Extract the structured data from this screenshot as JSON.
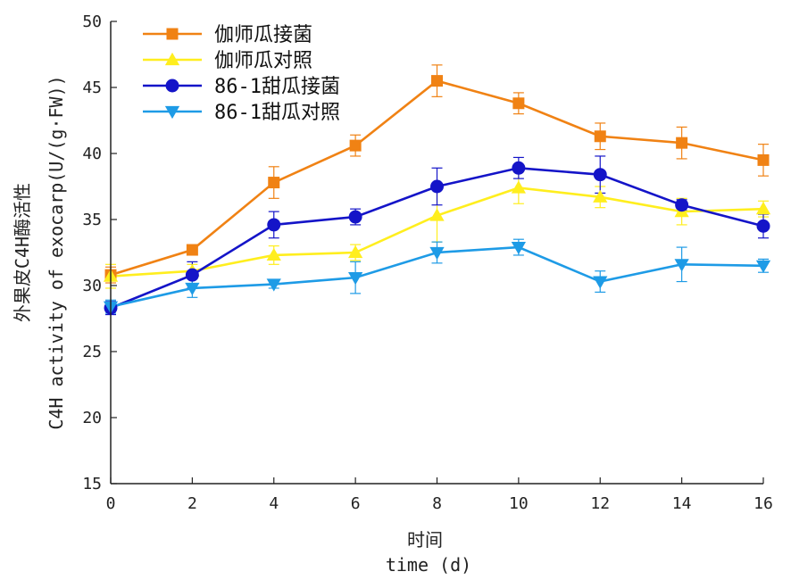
{
  "chart_data": {
    "type": "line",
    "x": [
      0,
      2,
      4,
      6,
      8,
      10,
      12,
      14,
      16
    ],
    "xlim": [
      0,
      16
    ],
    "ylim": [
      15,
      50
    ],
    "xticks": [
      0,
      2,
      4,
      6,
      8,
      10,
      12,
      14,
      16
    ],
    "yticks": [
      15,
      20,
      25,
      30,
      35,
      40,
      45,
      50
    ],
    "xlabel_cn": "时间",
    "xlabel": "time (d)",
    "ylabel_cn": "外果皮C4H酶活性",
    "ylabel": "C4H activity of exocarp(U/(g·FW))",
    "grid": false,
    "legend_position": "top-left",
    "series": [
      {
        "name": "伽师瓜接菌",
        "color": "#f08214",
        "marker": "square",
        "values": [
          30.8,
          32.7,
          37.8,
          40.6,
          45.5,
          43.8,
          41.3,
          40.8,
          39.5
        ],
        "errors": [
          0.6,
          0.3,
          1.2,
          0.8,
          1.2,
          0.8,
          1.0,
          1.2,
          1.2
        ]
      },
      {
        "name": "伽师瓜对照",
        "color": "#ffee1e",
        "marker": "triangle-up",
        "values": [
          30.7,
          31.1,
          32.3,
          32.5,
          35.3,
          37.4,
          36.7,
          35.6,
          35.8
        ],
        "errors": [
          0.9,
          0.5,
          0.7,
          0.6,
          2.0,
          1.2,
          0.8,
          1.0,
          0.6
        ]
      },
      {
        "name": "86-1甜瓜接菌",
        "color": "#1414c8",
        "marker": "circle",
        "values": [
          28.3,
          30.8,
          34.6,
          35.2,
          37.5,
          38.9,
          38.4,
          36.1,
          34.5
        ],
        "errors": [
          0.5,
          1.0,
          1.0,
          0.6,
          1.4,
          0.8,
          1.4,
          0.4,
          0.9
        ]
      },
      {
        "name": "86-1甜瓜对照",
        "color": "#1e9be6",
        "marker": "triangle-down",
        "values": [
          28.4,
          29.8,
          30.1,
          30.6,
          32.5,
          32.9,
          30.3,
          31.6,
          31.5
        ],
        "errors": [
          0.5,
          0.7,
          0.3,
          1.2,
          0.8,
          0.6,
          0.8,
          1.3,
          0.5
        ]
      }
    ]
  }
}
